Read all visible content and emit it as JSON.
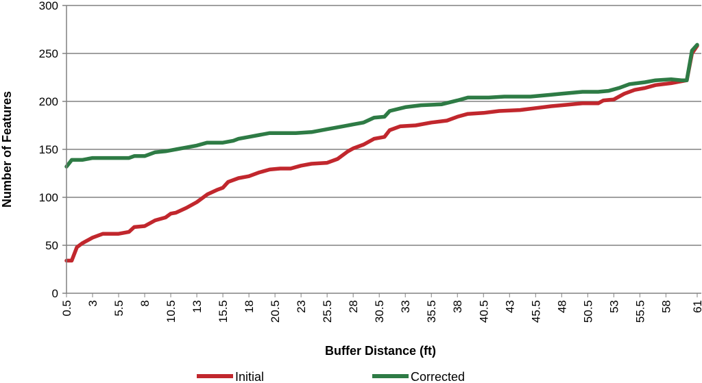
{
  "chart_data": {
    "type": "line",
    "title": "",
    "xlabel": "Buffer Distance (ft)",
    "ylabel": "Number of Features",
    "xlim": [
      0.5,
      61
    ],
    "ylim": [
      0,
      300
    ],
    "y_ticks": [
      0,
      50,
      100,
      150,
      200,
      250,
      300
    ],
    "x_ticks": [
      0.5,
      3,
      5.5,
      8,
      10.5,
      13,
      15.5,
      18,
      20.5,
      23,
      25.5,
      28,
      30.5,
      33,
      35.5,
      38,
      40.5,
      43,
      45.5,
      48,
      50.5,
      53,
      55.5,
      58,
      61
    ],
    "grid": "horizontal",
    "legend_position": "bottom",
    "colors": {
      "Initial": "#C1272D",
      "Corrected": "#2E7B45",
      "grid": "#808080"
    },
    "series": [
      {
        "name": "Initial",
        "points": [
          [
            0.5,
            34
          ],
          [
            1,
            34
          ],
          [
            1.5,
            48
          ],
          [
            2,
            52
          ],
          [
            3,
            58
          ],
          [
            4,
            62
          ],
          [
            5.5,
            62
          ],
          [
            6.5,
            64
          ],
          [
            7,
            69
          ],
          [
            8,
            70
          ],
          [
            9,
            76
          ],
          [
            10,
            79
          ],
          [
            10.5,
            83
          ],
          [
            11,
            84
          ],
          [
            12,
            89
          ],
          [
            13,
            95
          ],
          [
            14,
            103
          ],
          [
            15,
            108
          ],
          [
            15.5,
            110
          ],
          [
            16,
            116
          ],
          [
            17,
            120
          ],
          [
            18,
            122
          ],
          [
            19,
            126
          ],
          [
            20,
            129
          ],
          [
            21,
            130
          ],
          [
            22,
            130
          ],
          [
            23,
            133
          ],
          [
            24,
            135
          ],
          [
            25.5,
            136
          ],
          [
            26.5,
            140
          ],
          [
            27.5,
            148
          ],
          [
            28,
            151
          ],
          [
            29,
            155
          ],
          [
            30,
            161
          ],
          [
            31,
            163
          ],
          [
            31.5,
            170
          ],
          [
            32.5,
            174
          ],
          [
            34,
            175
          ],
          [
            35.5,
            178
          ],
          [
            37,
            180
          ],
          [
            38,
            184
          ],
          [
            39,
            187
          ],
          [
            40.5,
            188
          ],
          [
            42,
            190
          ],
          [
            44,
            191
          ],
          [
            45.5,
            193
          ],
          [
            47,
            195
          ],
          [
            48,
            196
          ],
          [
            50,
            198
          ],
          [
            51.5,
            198
          ],
          [
            52,
            201
          ],
          [
            53,
            202
          ],
          [
            54,
            208
          ],
          [
            55,
            212
          ],
          [
            56,
            214
          ],
          [
            57,
            217
          ],
          [
            58.5,
            219
          ],
          [
            60,
            222
          ],
          [
            60.5,
            250
          ],
          [
            61,
            258
          ]
        ]
      },
      {
        "name": "Corrected",
        "points": [
          [
            0.5,
            132
          ],
          [
            1,
            139
          ],
          [
            2,
            139
          ],
          [
            3,
            141
          ],
          [
            5,
            141
          ],
          [
            6.5,
            141
          ],
          [
            7,
            143
          ],
          [
            8,
            143
          ],
          [
            9,
            147
          ],
          [
            10,
            148
          ],
          [
            11,
            150
          ],
          [
            12,
            152
          ],
          [
            13,
            154
          ],
          [
            14,
            157
          ],
          [
            15.5,
            157
          ],
          [
            16.5,
            159
          ],
          [
            17,
            161
          ],
          [
            18,
            163
          ],
          [
            19,
            165
          ],
          [
            20,
            167
          ],
          [
            21,
            167
          ],
          [
            22.5,
            167
          ],
          [
            24,
            168
          ],
          [
            25.5,
            171
          ],
          [
            27,
            174
          ],
          [
            28,
            176
          ],
          [
            29,
            178
          ],
          [
            30,
            183
          ],
          [
            31,
            184
          ],
          [
            31.5,
            190
          ],
          [
            33,
            194
          ],
          [
            34.5,
            196
          ],
          [
            36.5,
            197
          ],
          [
            38,
            201
          ],
          [
            39,
            204
          ],
          [
            41,
            204
          ],
          [
            42.5,
            205
          ],
          [
            45,
            205
          ],
          [
            46,
            206
          ],
          [
            47,
            207
          ],
          [
            48,
            208
          ],
          [
            50,
            210
          ],
          [
            51.5,
            210
          ],
          [
            52.5,
            211
          ],
          [
            53.5,
            214
          ],
          [
            54.5,
            218
          ],
          [
            56,
            220
          ],
          [
            57,
            222
          ],
          [
            58.5,
            223
          ],
          [
            59.5,
            222
          ],
          [
            60,
            222
          ],
          [
            60.5,
            253
          ],
          [
            61,
            259
          ]
        ]
      }
    ]
  }
}
